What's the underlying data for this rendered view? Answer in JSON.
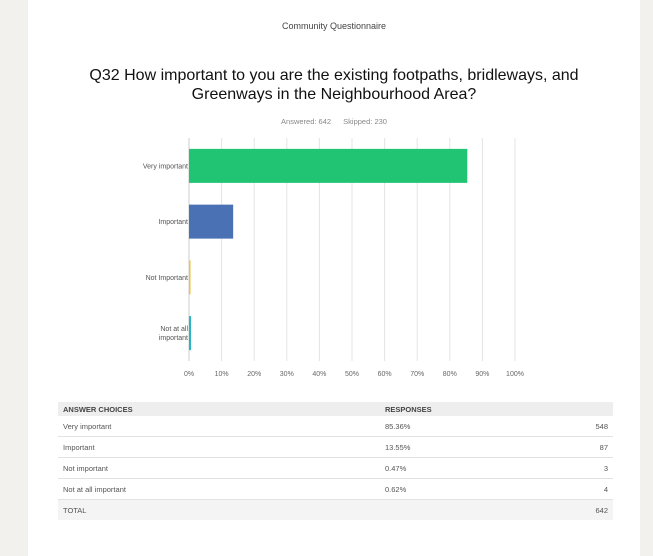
{
  "header": {
    "title": "Community Questionnaire"
  },
  "question": {
    "title": "Q32 How important to you are the existing footpaths, bridleways, and Greenways in the Neighbourhood Area?",
    "answered": "Answered: 642",
    "skipped": "Skipped: 230"
  },
  "chart_data": {
    "type": "bar",
    "orientation": "horizontal",
    "categories": [
      "Very important",
      "Important",
      "Not Important",
      "Not at all important"
    ],
    "category_lines": [
      [
        "Very important"
      ],
      [
        "Important"
      ],
      [
        "Not Important"
      ],
      [
        "Not at all",
        "important"
      ]
    ],
    "values": [
      85.36,
      13.55,
      0.47,
      0.62
    ],
    "colors": [
      "#20c472",
      "#4b71b5",
      "#f0c53c",
      "#2ab5c4"
    ],
    "xlim": [
      0,
      100
    ],
    "ticks": [
      "0%",
      "10%",
      "20%",
      "30%",
      "40%",
      "50%",
      "60%",
      "70%",
      "80%",
      "90%",
      "100%"
    ],
    "grid": true
  },
  "table": {
    "headers": [
      "ANSWER CHOICES",
      "RESPONSES",
      ""
    ],
    "rows": [
      {
        "choice": "Very important",
        "percent": "85.36%",
        "count": "548"
      },
      {
        "choice": "Important",
        "percent": "13.55%",
        "count": "87"
      },
      {
        "choice": "Not important",
        "percent": "0.47%",
        "count": "3"
      },
      {
        "choice": "Not at all important",
        "percent": "0.62%",
        "count": "4"
      }
    ],
    "total": {
      "label": "TOTAL",
      "count": "642"
    }
  }
}
